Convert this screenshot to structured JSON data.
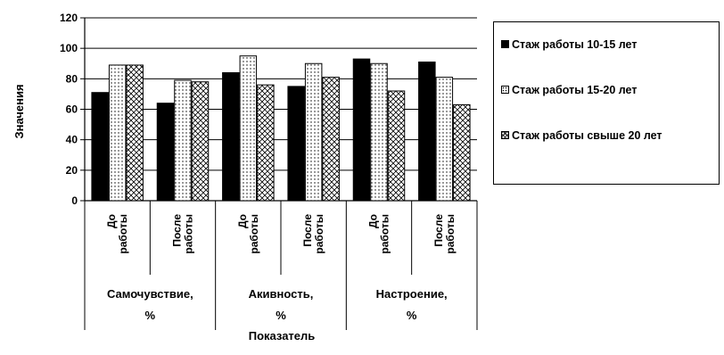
{
  "chart_data": {
    "type": "bar",
    "ylabel": "Значения",
    "xlabel": "Показатель",
    "ylim": [
      0,
      120
    ],
    "yticks": [
      "0",
      "20",
      "40",
      "60",
      "80",
      "100",
      "120"
    ],
    "grid": true,
    "legend_position": "right",
    "groups": [
      {
        "label": "Самочувствие, %",
        "subcategories": [
          "До работы",
          "После работы"
        ]
      },
      {
        "label": "Акивность, %",
        "subcategories": [
          "До работы",
          "После работы"
        ]
      },
      {
        "label": "Настроение, %",
        "subcategories": [
          "До работы",
          "После работы"
        ]
      }
    ],
    "categories": [
      "Самочувствие, % — До работы",
      "Самочувствие, % — После работы",
      "Акивность, % — До работы",
      "Акивность, % — После работы",
      "Настроение, % — До работы",
      "Настроение, % — После работы"
    ],
    "series": [
      {
        "name": "Стаж работы 10-15 лет",
        "pattern": "solid",
        "values": [
          71,
          64,
          84,
          75,
          93,
          91
        ]
      },
      {
        "name": "Стаж работы 15-20 лет",
        "pattern": "dots",
        "values": [
          89,
          79,
          95,
          90,
          90,
          81
        ]
      },
      {
        "name": "Стаж работы свыше 20 лет",
        "pattern": "crosshatch",
        "values": [
          89,
          78,
          76,
          81,
          72,
          63
        ]
      }
    ]
  },
  "legend": {
    "items": [
      {
        "label": "Стаж работы 10-15 лет"
      },
      {
        "label": "Стаж работы 15-20 лет"
      },
      {
        "label": "Стаж работы свыше 20 лет"
      }
    ]
  }
}
